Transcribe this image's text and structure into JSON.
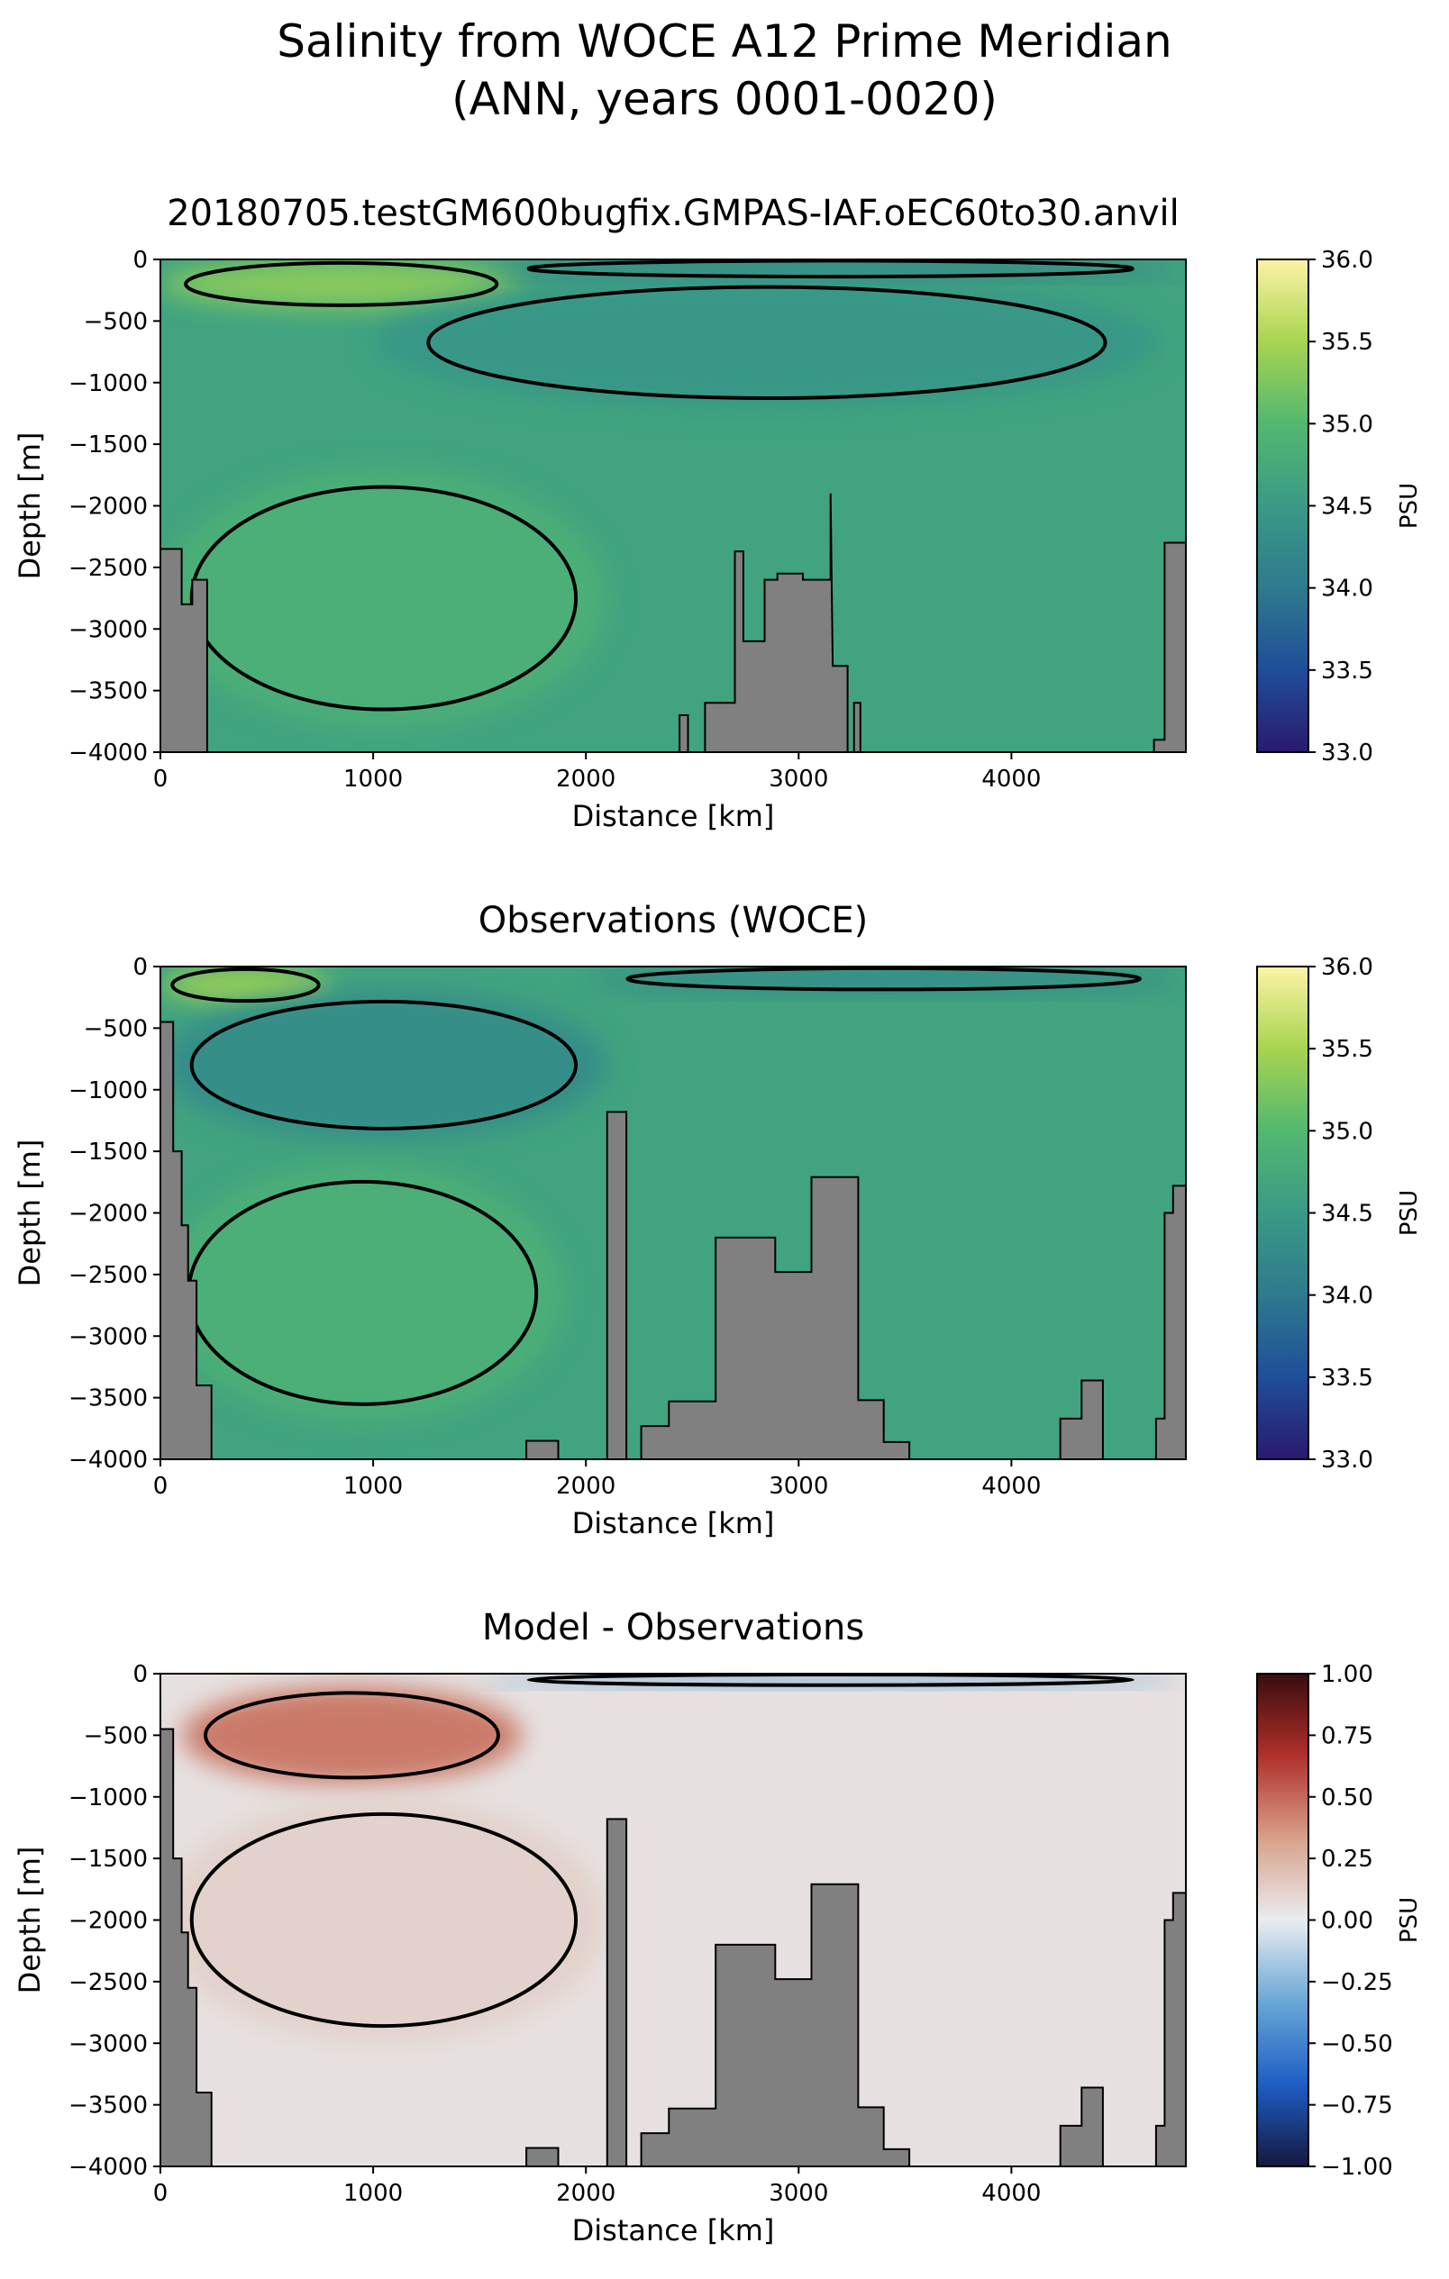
{
  "figure": {
    "title_line1": "Salinity from WOCE A12 Prime Meridian",
    "title_line2": "(ANN, years 0001-0020)"
  },
  "chart_data": [
    {
      "type": "heatmap",
      "title": "20180705.testGM600bugfix.GMPAS-IAF.oEC60to30.anvil",
      "xlabel": "Distance [km]",
      "ylabel": "Depth [m]",
      "xlim": [
        0,
        4820
      ],
      "ylim": [
        -4000,
        0
      ],
      "xticks": [
        "0",
        "1000",
        "2000",
        "3000",
        "4000"
      ],
      "yticks": [
        "0",
        "-500",
        "-1000",
        "-1500",
        "-2000",
        "-2500",
        "-3000",
        "-3500",
        "-4000"
      ],
      "colorbar": {
        "label": "PSU",
        "range": [
          33.0,
          36.0
        ],
        "ticks": [
          "36.0",
          "35.5",
          "35.0",
          "34.5",
          "34.0",
          "33.5",
          "33.0"
        ],
        "colormap": "haline",
        "colors": [
          "#2a1a6c",
          "#1f4e9a",
          "#2e7a8e",
          "#3a9a86",
          "#52b870",
          "#a8d450",
          "#fdf3a6"
        ]
      },
      "background_value": 34.65,
      "features": [
        {
          "name": "warm saline surface core",
          "x_range": [
            0,
            1700
          ],
          "depth_range": [
            0,
            400
          ],
          "value": 35.3
        },
        {
          "name": "fresh surface layer",
          "x_range": [
            1500,
            4800
          ],
          "depth_range": [
            0,
            150
          ],
          "value": 34.1
        },
        {
          "name": "intermediate water tongue",
          "x_range": [
            1000,
            4700
          ],
          "depth_range": [
            150,
            1200
          ],
          "value": 34.45
        },
        {
          "name": "deep saline water",
          "x_range": [
            0,
            2100
          ],
          "depth_range": [
            1700,
            3800
          ],
          "value": 34.85
        }
      ],
      "contour_levels": [
        34.0,
        34.5,
        34.8,
        35.0,
        35.5
      ],
      "bathymetry": [
        [
          0,
          -2350
        ],
        [
          100,
          -2350
        ],
        [
          100,
          -2800
        ],
        [
          150,
          -2800
        ],
        [
          150,
          -2600
        ],
        [
          220,
          -2600
        ],
        [
          220,
          -4000
        ],
        [
          2440,
          -4000
        ],
        [
          2440,
          -3700
        ],
        [
          2480,
          -3700
        ],
        [
          2480,
          -4000
        ],
        [
          2560,
          -4000
        ],
        [
          2560,
          -3600
        ],
        [
          2700,
          -3600
        ],
        [
          2700,
          -2370
        ],
        [
          2740,
          -2370
        ],
        [
          2740,
          -3100
        ],
        [
          2840,
          -3100
        ],
        [
          2840,
          -2600
        ],
        [
          2900,
          -2600
        ],
        [
          2900,
          -2550
        ],
        [
          3020,
          -2550
        ],
        [
          3020,
          -2600
        ],
        [
          3150,
          -2600
        ],
        [
          3150,
          -1900
        ],
        [
          3160,
          -3300
        ],
        [
          3230,
          -3300
        ],
        [
          3230,
          -4000
        ],
        [
          3260,
          -4000
        ],
        [
          3260,
          -3600
        ],
        [
          3290,
          -3600
        ],
        [
          3290,
          -4000
        ],
        [
          4670,
          -4000
        ],
        [
          4670,
          -3900
        ],
        [
          4720,
          -3900
        ],
        [
          4720,
          -2300
        ],
        [
          4820,
          -2300
        ],
        [
          4820,
          -4000
        ],
        [
          0,
          -4000
        ]
      ]
    },
    {
      "type": "heatmap",
      "title": "Observations (WOCE)",
      "xlabel": "Distance [km]",
      "ylabel": "Depth [m]",
      "xlim": [
        0,
        4820
      ],
      "ylim": [
        -4000,
        0
      ],
      "xticks": [
        "0",
        "1000",
        "2000",
        "3000",
        "4000"
      ],
      "yticks": [
        "0",
        "-500",
        "-1000",
        "-1500",
        "-2000",
        "-2500",
        "-3000",
        "-3500",
        "-4000"
      ],
      "colorbar": {
        "label": "PSU",
        "range": [
          33.0,
          36.0
        ],
        "ticks": [
          "36.0",
          "35.5",
          "35.0",
          "34.5",
          "34.0",
          "33.5",
          "33.0"
        ],
        "colormap": "haline",
        "colors": [
          "#2a1a6c",
          "#1f4e9a",
          "#2e7a8e",
          "#3a9a86",
          "#52b870",
          "#a8d450",
          "#fdf3a6"
        ]
      },
      "background_value": 34.65,
      "features": [
        {
          "name": "saline surface water",
          "x_range": [
            0,
            800
          ],
          "depth_range": [
            0,
            300
          ],
          "value": 35.4
        },
        {
          "name": "intermediate water",
          "x_range": [
            0,
            2100
          ],
          "depth_range": [
            200,
            1400
          ],
          "value": 34.3
        },
        {
          "name": "fresh surface layer",
          "x_range": [
            2000,
            4800
          ],
          "depth_range": [
            0,
            200
          ],
          "value": 34.2
        },
        {
          "name": "deep saline water",
          "x_range": [
            0,
            1900
          ],
          "depth_range": [
            1600,
            3700
          ],
          "value": 34.85
        }
      ],
      "contour_levels": [
        34.0,
        34.5,
        34.8,
        35.0,
        35.5
      ],
      "bathymetry": [
        [
          0,
          -450
        ],
        [
          60,
          -450
        ],
        [
          60,
          -1500
        ],
        [
          100,
          -1500
        ],
        [
          100,
          -2100
        ],
        [
          130,
          -2100
        ],
        [
          130,
          -2550
        ],
        [
          170,
          -2550
        ],
        [
          170,
          -3400
        ],
        [
          240,
          -3400
        ],
        [
          240,
          -4000
        ],
        [
          1720,
          -4000
        ],
        [
          1720,
          -3850
        ],
        [
          1870,
          -3850
        ],
        [
          1870,
          -4000
        ],
        [
          2100,
          -4000
        ],
        [
          2100,
          -1180
        ],
        [
          2190,
          -1180
        ],
        [
          2190,
          -4000
        ],
        [
          2260,
          -4000
        ],
        [
          2260,
          -3730
        ],
        [
          2390,
          -3730
        ],
        [
          2390,
          -3530
        ],
        [
          2610,
          -3530
        ],
        [
          2610,
          -2200
        ],
        [
          2890,
          -2200
        ],
        [
          2890,
          -2480
        ],
        [
          3060,
          -2480
        ],
        [
          3060,
          -1710
        ],
        [
          3280,
          -1710
        ],
        [
          3280,
          -3520
        ],
        [
          3400,
          -3520
        ],
        [
          3400,
          -3860
        ],
        [
          3520,
          -3860
        ],
        [
          3520,
          -4000
        ],
        [
          4230,
          -4000
        ],
        [
          4230,
          -3670
        ],
        [
          4330,
          -3670
        ],
        [
          4330,
          -3360
        ],
        [
          4430,
          -3360
        ],
        [
          4430,
          -4000
        ],
        [
          4680,
          -4000
        ],
        [
          4680,
          -3670
        ],
        [
          4720,
          -3670
        ],
        [
          4720,
          -2000
        ],
        [
          4760,
          -2000
        ],
        [
          4760,
          -1780
        ],
        [
          4820,
          -1780
        ],
        [
          4820,
          -4000
        ],
        [
          0,
          -4000
        ]
      ]
    },
    {
      "type": "heatmap",
      "title": "Model - Observations",
      "xlabel": "Distance [km]",
      "ylabel": "Depth [m]",
      "xlim": [
        0,
        4820
      ],
      "ylim": [
        -4000,
        0
      ],
      "xticks": [
        "0",
        "1000",
        "2000",
        "3000",
        "4000"
      ],
      "yticks": [
        "0",
        "-500",
        "-1000",
        "-1500",
        "-2000",
        "-2500",
        "-3000",
        "-3500",
        "-4000"
      ],
      "colorbar": {
        "label": "PSU",
        "range": [
          -1.0,
          1.0
        ],
        "ticks": [
          "1.00",
          "0.75",
          "0.50",
          "0.25",
          "0.00",
          "−0.25",
          "−0.50",
          "−0.75",
          "−1.00"
        ],
        "colormap": "balance",
        "colors": [
          "#16193f",
          "#1d5ec4",
          "#69a7d6",
          "#e9ecef",
          "#d8a08a",
          "#b0302a",
          "#3a0c0f"
        ]
      },
      "background_value": 0.05,
      "features": [
        {
          "name": "positive bias core",
          "x_range": [
            100,
            1700
          ],
          "depth_range": [
            100,
            900
          ],
          "value": 0.45
        },
        {
          "name": "negative surface bias",
          "x_range": [
            1500,
            4800
          ],
          "depth_range": [
            0,
            100
          ],
          "value": -0.35
        },
        {
          "name": "weak positive deep bias",
          "x_range": [
            0,
            2100
          ],
          "depth_range": [
            1000,
            3000
          ],
          "value": 0.12
        }
      ],
      "contour_levels": [
        -0.25,
        0.25
      ],
      "bathymetry": [
        [
          0,
          -450
        ],
        [
          60,
          -450
        ],
        [
          60,
          -1500
        ],
        [
          100,
          -1500
        ],
        [
          100,
          -2100
        ],
        [
          130,
          -2100
        ],
        [
          130,
          -2550
        ],
        [
          170,
          -2550
        ],
        [
          170,
          -3400
        ],
        [
          240,
          -3400
        ],
        [
          240,
          -4000
        ],
        [
          1720,
          -4000
        ],
        [
          1720,
          -3850
        ],
        [
          1870,
          -3850
        ],
        [
          1870,
          -4000
        ],
        [
          2100,
          -4000
        ],
        [
          2100,
          -1180
        ],
        [
          2190,
          -1180
        ],
        [
          2190,
          -4000
        ],
        [
          2260,
          -4000
        ],
        [
          2260,
          -3730
        ],
        [
          2390,
          -3730
        ],
        [
          2390,
          -3530
        ],
        [
          2610,
          -3530
        ],
        [
          2610,
          -2200
        ],
        [
          2890,
          -2200
        ],
        [
          2890,
          -2480
        ],
        [
          3060,
          -2480
        ],
        [
          3060,
          -1710
        ],
        [
          3280,
          -1710
        ],
        [
          3280,
          -3520
        ],
        [
          3400,
          -3520
        ],
        [
          3400,
          -3860
        ],
        [
          3520,
          -3860
        ],
        [
          3520,
          -4000
        ],
        [
          4230,
          -4000
        ],
        [
          4230,
          -3670
        ],
        [
          4330,
          -3670
        ],
        [
          4330,
          -3360
        ],
        [
          4430,
          -3360
        ],
        [
          4430,
          -4000
        ],
        [
          4680,
          -4000
        ],
        [
          4680,
          -3670
        ],
        [
          4720,
          -3670
        ],
        [
          4720,
          -2000
        ],
        [
          4760,
          -2000
        ],
        [
          4760,
          -1780
        ],
        [
          4820,
          -1780
        ],
        [
          4820,
          -4000
        ],
        [
          0,
          -4000
        ]
      ]
    }
  ]
}
